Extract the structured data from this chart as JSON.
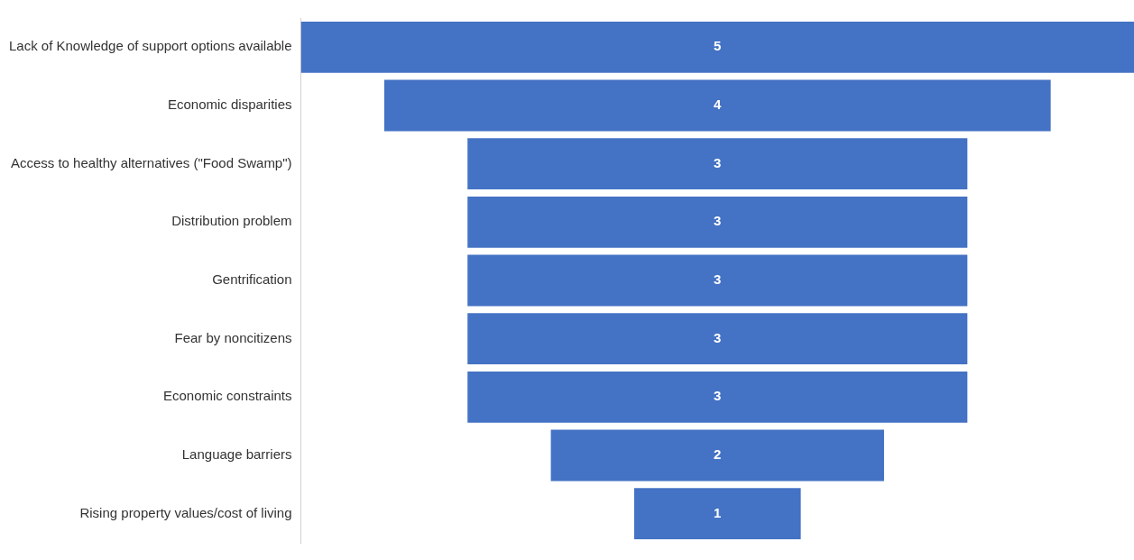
{
  "chart_data": {
    "type": "other",
    "categories": [
      "Lack of Knowledge of support options available",
      "Economic disparities",
      "Access to healthy alternatives (\"Food Swamp\")",
      "Distribution problem",
      "Gentrification",
      "Fear by noncitizens",
      "Economic constraints",
      "Language barriers",
      "Rising property values/cost of living"
    ],
    "values": [
      5,
      4,
      3,
      3,
      3,
      3,
      3,
      2,
      1
    ],
    "color": "#4472c4",
    "data_labels": true
  }
}
